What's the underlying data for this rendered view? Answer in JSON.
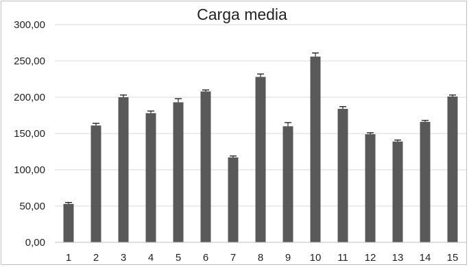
{
  "chart_data": {
    "type": "bar",
    "title": "Carga media",
    "xlabel": "",
    "ylabel": "",
    "categories": [
      "1",
      "2",
      "3",
      "4",
      "5",
      "6",
      "7",
      "8",
      "9",
      "10",
      "11",
      "12",
      "13",
      "14",
      "15"
    ],
    "values": [
      53,
      161,
      200,
      178,
      193,
      208,
      117,
      228,
      160,
      256,
      184,
      149,
      139,
      166,
      201
    ],
    "errors": [
      2,
      3,
      3,
      3,
      5,
      2,
      2,
      4,
      5,
      5,
      3,
      2,
      2,
      2,
      2
    ],
    "ylim": [
      0,
      300
    ],
    "yticks": [
      "0,00",
      "50,00",
      "100,00",
      "150,00",
      "200,00",
      "250,00",
      "300,00"
    ],
    "grid": true,
    "legend": "none",
    "bar_color": "#595959",
    "grid_color": "#d9d9d9"
  }
}
